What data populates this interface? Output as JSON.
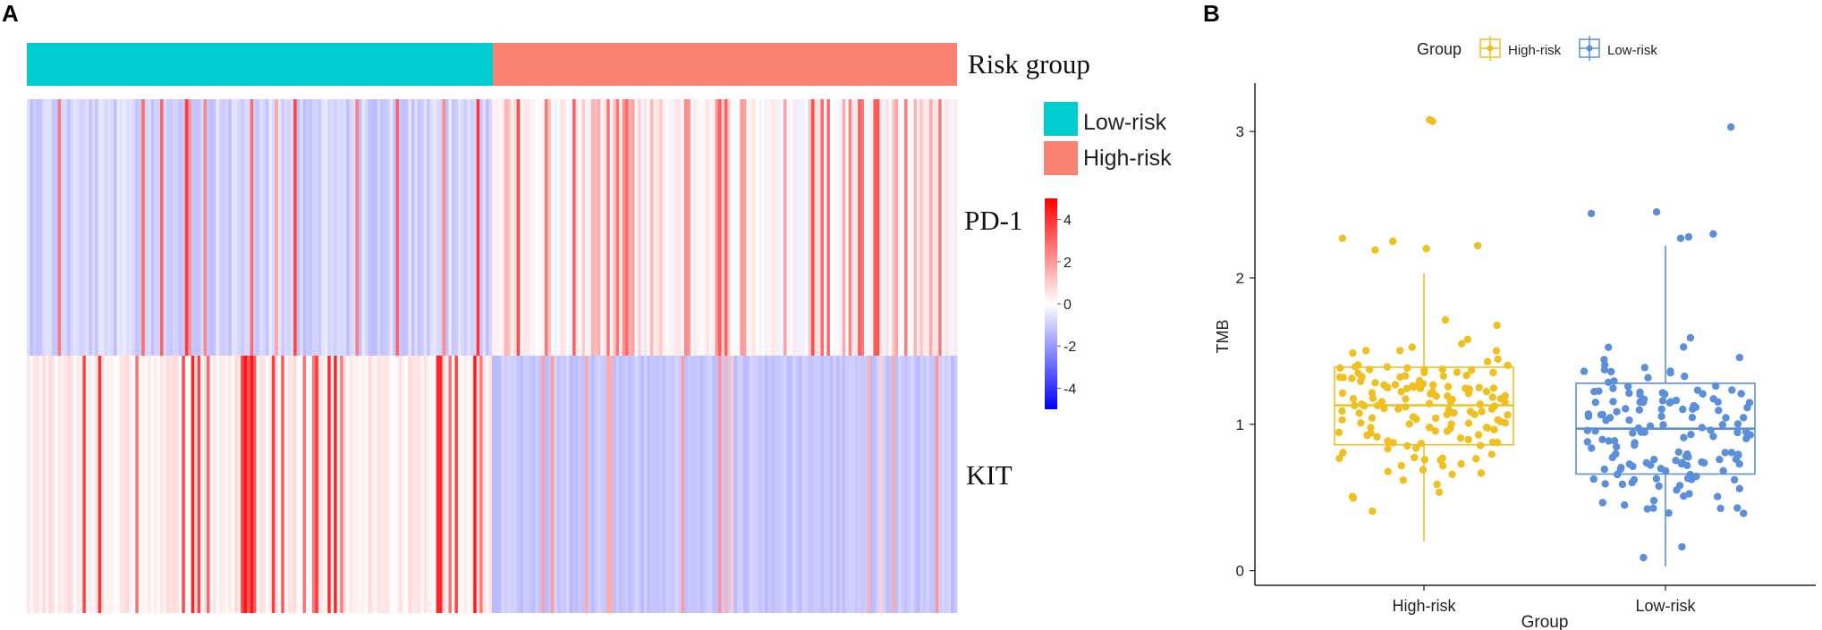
{
  "panel_a": {
    "label": "A",
    "annotation_label": "Risk group",
    "row_labels": [
      "PD-1",
      "KIT"
    ],
    "legend": [
      "Low-risk",
      "High-risk"
    ],
    "colorbar_ticks": [
      "4",
      "2",
      "0",
      "-2",
      "-4"
    ]
  },
  "panel_b": {
    "label": "B",
    "legend_title": "Group",
    "legend": [
      "High-risk",
      "Low-risk"
    ]
  },
  "colors": {
    "low_risk": "#00CED1",
    "high_risk": "#FA8072",
    "heat_high": "#FF0000",
    "heat_mid": "#FFFFFF",
    "heat_low": "#0000FF",
    "box_high": "#F0C020",
    "box_low": "#5B8FD9"
  },
  "chart_data": [
    {
      "type": "heatmap",
      "title": "",
      "rows": [
        "PD-1",
        "KIT"
      ],
      "column_annotation": {
        "name": "Risk group",
        "groups": [
          {
            "name": "Low-risk",
            "fraction": 0.5
          },
          {
            "name": "High-risk",
            "fraction": 0.5
          }
        ]
      },
      "color_scale": {
        "min": -5,
        "max": 5,
        "ticks": [
          4,
          2,
          0,
          -2,
          -4
        ]
      },
      "n_samples": 300
    },
    {
      "type": "box",
      "title": "",
      "xlabel": "Group",
      "ylabel": "TMB",
      "categories": [
        "High-risk",
        "Low-risk"
      ],
      "ylim": [
        -0.1,
        3.3
      ],
      "yticks": [
        0,
        1,
        2,
        3
      ],
      "boxes": [
        {
          "name": "High-risk",
          "whisker_low": 0.2,
          "q1": 0.86,
          "median": 1.13,
          "q3": 1.39,
          "whisker_high": 2.03
        },
        {
          "name": "Low-risk",
          "whisker_low": 0.03,
          "q1": 0.66,
          "median": 0.97,
          "q3": 1.28,
          "whisker_high": 2.22
        }
      ],
      "outliers": [
        {
          "group": "High-risk",
          "values": [
            3.08,
            3.07,
            2.27,
            2.25,
            2.22,
            2.2,
            2.19
          ]
        },
        {
          "group": "Low-risk",
          "values": [
            3.03,
            2.45,
            2.44,
            2.3,
            2.28,
            2.27
          ]
        }
      ]
    }
  ]
}
